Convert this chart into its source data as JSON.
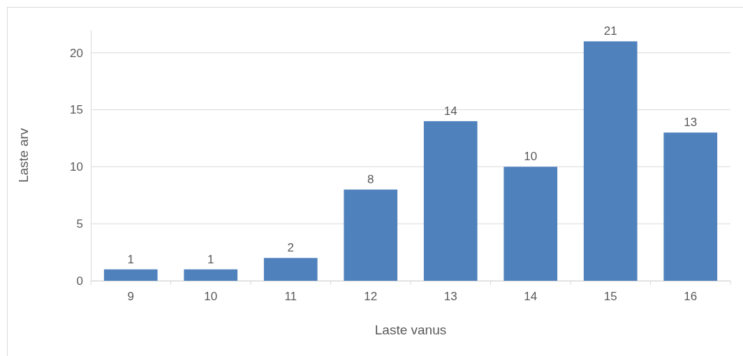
{
  "chart_data": {
    "type": "bar",
    "xlabel": "Laste vanus",
    "ylabel": "Laste arv",
    "categories": [
      "9",
      "10",
      "11",
      "12",
      "13",
      "14",
      "15",
      "16"
    ],
    "values": [
      1,
      1,
      2,
      8,
      14,
      10,
      21,
      13
    ],
    "color": "#4f81bd",
    "ylim": [
      0,
      22
    ],
    "yticks": [
      0,
      5,
      10,
      15,
      20
    ],
    "grid": "y",
    "data_labels": true
  }
}
